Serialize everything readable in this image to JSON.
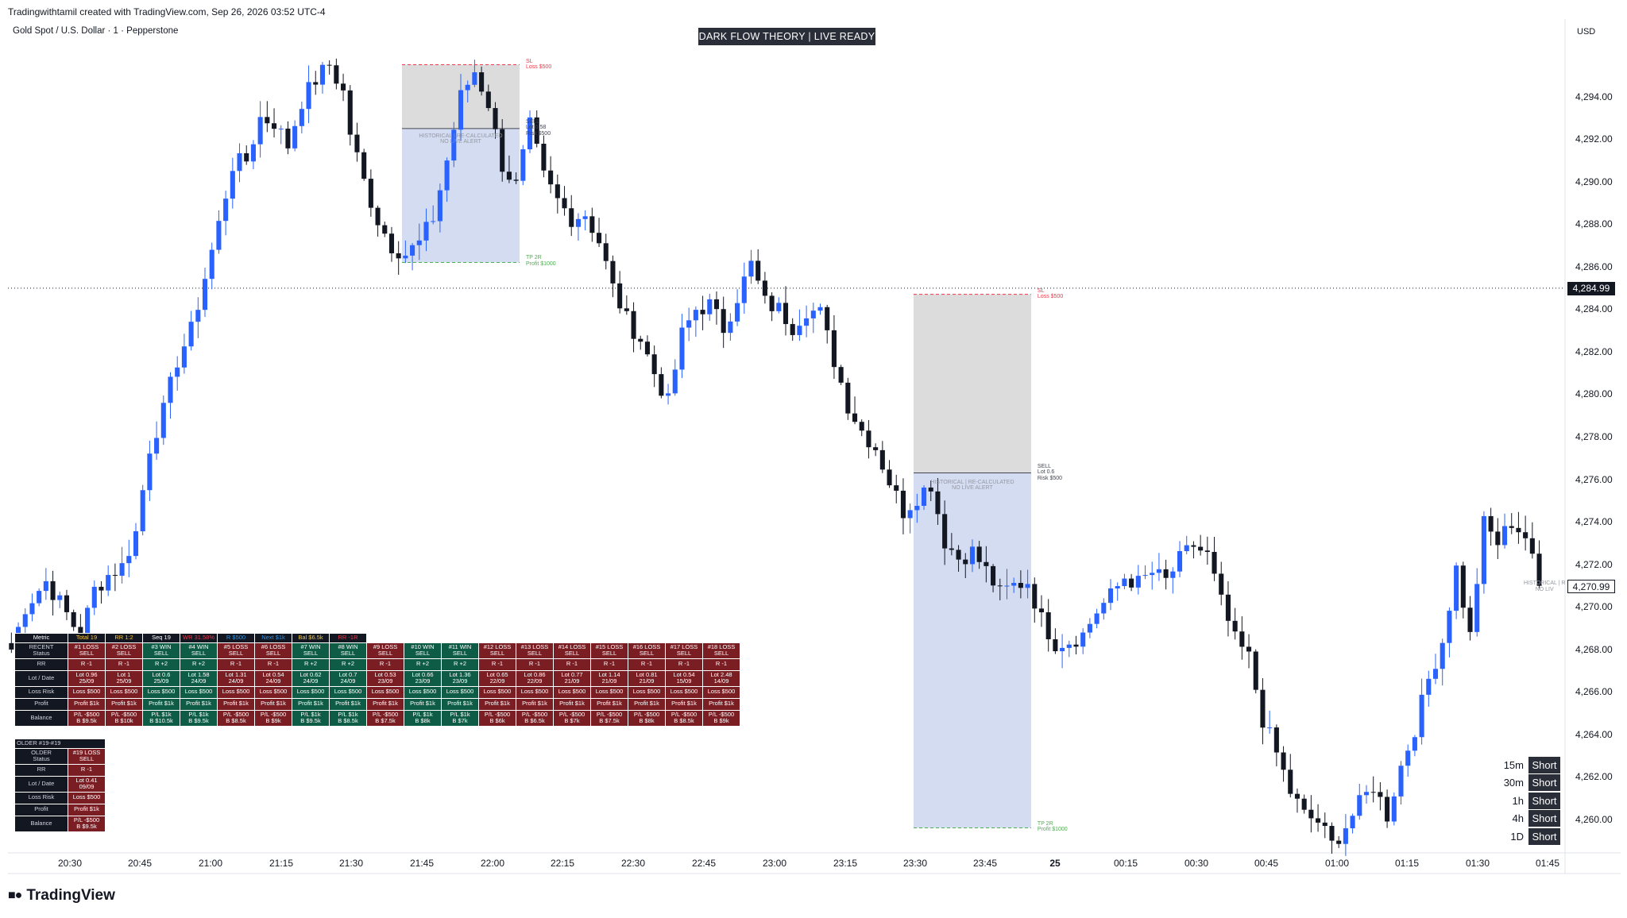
{
  "header": {
    "created": "Tradingwithtamil created with TradingView.com, Sep 26, 2026 03:52 UTC-4",
    "symbol": "Gold Spot / U.S. Dollar · 1 · Pepperstone"
  },
  "badge": {
    "title": "DARK FLOW THEORY | LIVE READY"
  },
  "logo": {
    "text": "TradingView"
  },
  "price_axis": {
    "currency": "USD",
    "labels": [
      "4,294.00",
      "4,292.00",
      "4,290.00",
      "4,288.00",
      "4,286.00",
      "4,284.00",
      "4,282.00",
      "4,280.00",
      "4,278.00",
      "4,276.00",
      "4,274.00",
      "4,272.00",
      "4,270.00",
      "4,268.00",
      "4,266.00",
      "4,264.00",
      "4,262.00",
      "4,260.00"
    ],
    "last_price": "4,284.99",
    "current_price": "4,270.99"
  },
  "time_axis": {
    "labels": [
      "20:30",
      "20:45",
      "21:00",
      "21:15",
      "21:30",
      "21:45",
      "22:00",
      "22:15",
      "22:30",
      "22:45",
      "23:00",
      "23:15",
      "23:30",
      "23:45",
      "25",
      "00:15",
      "00:30",
      "00:45",
      "01:00",
      "01:15",
      "01:30",
      "01:45"
    ]
  },
  "zones": [
    {
      "sl": "SL\nLoss $500",
      "entry": "SELL\nLot 0.58\nRisk $500",
      "tp": "TP 2R\nProfit $1000",
      "note": "HISTORICAL | RE-CALCULATED\nNO LIVE ALERT",
      "sl_price": 4295.5,
      "entry_price": 4292.5,
      "tp_price": 4286.2
    },
    {
      "sl": "SL\nLoss $500",
      "entry": "SELL\nLot 0.6\nRisk $500",
      "tp": "TP 2R\nProfit $1000",
      "note": "HISTORICAL | RE-CALCULATED\nNO LIVE ALERT",
      "sl_price": 4284.7,
      "entry_price": 4276.3,
      "tp_price": 4259.6
    },
    {
      "note": "HISTORICAL | R\nNO LIV"
    }
  ],
  "stats_header": [
    "Metric",
    "Total 19",
    "RR 1:2",
    "Seq 19",
    "WR 31.58%",
    "R $500",
    "Next $1k",
    "Bal $6.5k",
    "RR -1R"
  ],
  "stats_header_colors": [
    "#ffffff",
    "#f5c542",
    "#f5c542",
    "#ffffff",
    "#f23645",
    "#2196f3",
    "#2196f3",
    "#f5c542",
    "#f23645"
  ],
  "recent_rows": {
    "labels": [
      "RECENT\nStatus",
      "RR",
      "Lot / Date",
      "Loss Risk",
      "Profit",
      "Balance"
    ],
    "trades": [
      {
        "status": "#1 LOSS\nSELL",
        "rr": "R -1",
        "lot": "Lot 0.96\n25/09",
        "risk": "Loss $500",
        "profit": "Profit $1k",
        "bal": "P/L -$500\nB $9.5k",
        "win": false
      },
      {
        "status": "#2 LOSS\nSELL",
        "rr": "R -1",
        "lot": "Lot 1\n25/09",
        "risk": "Loss $500",
        "profit": "Profit $1k",
        "bal": "P/L -$500\nB $10k",
        "win": false
      },
      {
        "status": "#3 WIN\nSELL",
        "rr": "R +2",
        "lot": "Lot 0.6\n25/09",
        "risk": "Loss $500",
        "profit": "Profit $1k",
        "bal": "P/L $1k\nB $10.5k",
        "win": true
      },
      {
        "status": "#4 WIN\nSELL",
        "rr": "R +2",
        "lot": "Lot 1.58\n24/09",
        "risk": "Loss $500",
        "profit": "Profit $1k",
        "bal": "P/L $1k\nB $9.5k",
        "win": true
      },
      {
        "status": "#5 LOSS\nSELL",
        "rr": "R -1",
        "lot": "Lot 1.31\n24/09",
        "risk": "Loss $500",
        "profit": "Profit $1k",
        "bal": "P/L -$500\nB $8.5k",
        "win": false
      },
      {
        "status": "#6 LOSS\nSELL",
        "rr": "R -1",
        "lot": "Lot 0.54\n24/09",
        "risk": "Loss $500",
        "profit": "Profit $1k",
        "bal": "P/L -$500\nB $9k",
        "win": false
      },
      {
        "status": "#7 WIN\nSELL",
        "rr": "R +2",
        "lot": "Lot 0.62\n24/09",
        "risk": "Loss $500",
        "profit": "Profit $1k",
        "bal": "P/L $1k\nB $9.5k",
        "win": true
      },
      {
        "status": "#8 WIN\nSELL",
        "rr": "R +2",
        "lot": "Lot 0.7\n24/09",
        "risk": "Loss $500",
        "profit": "Profit $1k",
        "bal": "P/L $1k\nB $8.5k",
        "win": true
      },
      {
        "status": "#9 LOSS\nSELL",
        "rr": "R -1",
        "lot": "Lot 0.53\n23/09",
        "risk": "Loss $500",
        "profit": "Profit $1k",
        "bal": "P/L -$500\nB $7.5k",
        "win": false
      },
      {
        "status": "#10 WIN\nSELL",
        "rr": "R +2",
        "lot": "Lot 0.66\n23/09",
        "risk": "Loss $500",
        "profit": "Profit $1k",
        "bal": "P/L $1k\nB $8k",
        "win": true
      },
      {
        "status": "#11 WIN\nSELL",
        "rr": "R +2",
        "lot": "Lot 1.36\n23/09",
        "risk": "Loss $500",
        "profit": "Profit $1k",
        "bal": "P/L $1k\nB $7k",
        "win": true
      },
      {
        "status": "#12 LOSS\nSELL",
        "rr": "R -1",
        "lot": "Lot 0.65\n22/09",
        "risk": "Loss $500",
        "profit": "Profit $1k",
        "bal": "P/L -$500\nB $6k",
        "win": false
      },
      {
        "status": "#13 LOSS\nSELL",
        "rr": "R -1",
        "lot": "Lot 0.86\n22/09",
        "risk": "Loss $500",
        "profit": "Profit $1k",
        "bal": "P/L -$500\nB $6.5k",
        "win": false
      },
      {
        "status": "#14 LOSS\nSELL",
        "rr": "R -1",
        "lot": "Lot 0.77\n21/09",
        "risk": "Loss $500",
        "profit": "Profit $1k",
        "bal": "P/L -$500\nB $7k",
        "win": false
      },
      {
        "status": "#15 LOSS\nSELL",
        "rr": "R -1",
        "lot": "Lot 1.14\n21/09",
        "risk": "Loss $500",
        "profit": "Profit $1k",
        "bal": "P/L -$500\nB $7.5k",
        "win": false
      },
      {
        "status": "#16 LOSS\nSELL",
        "rr": "R -1",
        "lot": "Lot 0.81\n21/09",
        "risk": "Loss $500",
        "profit": "Profit $1k",
        "bal": "P/L -$500\nB $8k",
        "win": false
      },
      {
        "status": "#17 LOSS\nSELL",
        "rr": "R -1",
        "lot": "Lot 0.54\n15/09",
        "risk": "Loss $500",
        "profit": "Profit $1k",
        "bal": "P/L -$500\nB $8.5k",
        "win": false
      },
      {
        "status": "#18 LOSS\nSELL",
        "rr": "R -1",
        "lot": "Lot 2.48\n14/09",
        "risk": "Loss $500",
        "profit": "Profit $1k",
        "bal": "P/L -$500\nB $9k",
        "win": false
      }
    ]
  },
  "older": {
    "title": "OLDER #19-#19",
    "labels": [
      "OLDER\nStatus",
      "RR",
      "Lot / Date",
      "Loss Risk",
      "Profit",
      "Balance"
    ],
    "values": [
      "#19 LOSS\nSELL",
      "R -1",
      "Lot 0.41\n09/09",
      "Loss $500",
      "Profit $1k",
      "P/L -$500\nB $9.5k"
    ]
  },
  "timeframes": [
    {
      "tf": "15m",
      "signal": "Short"
    },
    {
      "tf": "30m",
      "signal": "Short"
    },
    {
      "tf": "1h",
      "signal": "Short"
    },
    {
      "tf": "4h",
      "signal": "Short"
    },
    {
      "tf": "1D",
      "signal": "Short"
    }
  ],
  "colors": {
    "up": "#2962ff",
    "down": "#131722",
    "loss": "#7b1e24",
    "win": "#0e5c45",
    "sl": "#f23645",
    "tp": "#4caf50"
  },
  "chart_data": {
    "type": "candlestick",
    "symbol": "XAUUSD",
    "interval": "1",
    "ylim": [
      4258.5,
      4297.5
    ],
    "last_price": 4284.99,
    "current_price": 4270.99,
    "path": [
      [
        0,
        4268.0
      ],
      [
        2,
        4270.0
      ],
      [
        5,
        4271.2
      ],
      [
        7,
        4270.2
      ],
      [
        10,
        4268.6
      ],
      [
        12,
        4270.8
      ],
      [
        14,
        4271.5
      ],
      [
        16,
        4271.9
      ],
      [
        18,
        4273.5
      ],
      [
        20,
        4277.5
      ],
      [
        22,
        4279.2
      ],
      [
        24,
        4281.6
      ],
      [
        26,
        4283.0
      ],
      [
        28,
        4285.5
      ],
      [
        30,
        4288.0
      ],
      [
        32,
        4290.8
      ],
      [
        34,
        4291.0
      ],
      [
        36,
        4293.0
      ],
      [
        38,
        4292.8
      ],
      [
        40,
        4291.7
      ],
      [
        42,
        4293.8
      ],
      [
        44,
        4294.8
      ],
      [
        46,
        4295.5
      ],
      [
        48,
        4294.2
      ],
      [
        49,
        4292.3
      ],
      [
        51,
        4290.0
      ],
      [
        53,
        4288.2
      ],
      [
        55,
        4287.0
      ],
      [
        57,
        4286.6
      ],
      [
        59,
        4287.1
      ],
      [
        61,
        4288.3
      ],
      [
        63,
        4291.0
      ],
      [
        65,
        4294.0
      ],
      [
        67,
        4295.2
      ],
      [
        69,
        4293.7
      ],
      [
        71,
        4290.8
      ],
      [
        73,
        4289.8
      ],
      [
        75,
        4292.6
      ],
      [
        77,
        4290.2
      ],
      [
        79,
        4289.1
      ],
      [
        81,
        4288.3
      ],
      [
        83,
        4288.5
      ],
      [
        85,
        4287.2
      ],
      [
        87,
        4285.0
      ],
      [
        89,
        4283.5
      ],
      [
        91,
        4282.6
      ],
      [
        93,
        4281.0
      ],
      [
        95,
        4279.6
      ],
      [
        97,
        4282.8
      ],
      [
        99,
        4284.0
      ],
      [
        101,
        4284.2
      ],
      [
        103,
        4283.1
      ],
      [
        105,
        4284.6
      ],
      [
        107,
        4286.1
      ],
      [
        109,
        4284.3
      ],
      [
        111,
        4284.0
      ],
      [
        113,
        4283.2
      ],
      [
        115,
        4284.0
      ],
      [
        117,
        4283.8
      ],
      [
        119,
        4281.6
      ],
      [
        121,
        4279.5
      ],
      [
        123,
        4278.3
      ],
      [
        125,
        4277.5
      ],
      [
        127,
        4275.9
      ],
      [
        129,
        4274.5
      ],
      [
        131,
        4275.2
      ],
      [
        133,
        4275.8
      ],
      [
        135,
        4273.1
      ],
      [
        137,
        4272.3
      ],
      [
        139,
        4272.6
      ],
      [
        141,
        4271.7
      ],
      [
        143,
        4270.6
      ],
      [
        145,
        4271.0
      ],
      [
        147,
        4271.2
      ],
      [
        149,
        4269.4
      ],
      [
        151,
        4268.3
      ],
      [
        153,
        4268.4
      ],
      [
        155,
        4268.7
      ],
      [
        157,
        4269.8
      ],
      [
        159,
        4270.5
      ],
      [
        161,
        4271.4
      ],
      [
        163,
        4271.1
      ],
      [
        165,
        4271.6
      ],
      [
        167,
        4271.2
      ],
      [
        169,
        4272.2
      ],
      [
        171,
        4272.9
      ],
      [
        173,
        4272.4
      ],
      [
        175,
        4270.2
      ],
      [
        177,
        4268.4
      ],
      [
        179,
        4267.6
      ],
      [
        181,
        4264.7
      ],
      [
        183,
        4263.1
      ],
      [
        185,
        4261.3
      ],
      [
        187,
        4260.2
      ],
      [
        189,
        4259.9
      ],
      [
        191,
        4258.8
      ],
      [
        193,
        4259.7
      ],
      [
        195,
        4260.7
      ],
      [
        197,
        4261.6
      ],
      [
        199,
        4260.2
      ],
      [
        201,
        4262.5
      ],
      [
        203,
        4264.3
      ],
      [
        205,
        4266.6
      ],
      [
        207,
        4268.4
      ],
      [
        209,
        4271.8
      ],
      [
        211,
        4268.6
      ],
      [
        213,
        4273.9
      ],
      [
        215,
        4273.0
      ],
      [
        217,
        4274.0
      ],
      [
        219,
        4273.3
      ],
      [
        221,
        4270.99
      ]
    ],
    "zones": [
      {
        "side": "sell",
        "sl": 4295.5,
        "entry": 4292.5,
        "tp": 4286.2,
        "start_bar": 57,
        "end_bar": 73
      },
      {
        "side": "sell",
        "sl": 4284.7,
        "entry": 4276.3,
        "tp": 4259.6,
        "start_bar": 131,
        "end_bar": 147
      }
    ]
  }
}
